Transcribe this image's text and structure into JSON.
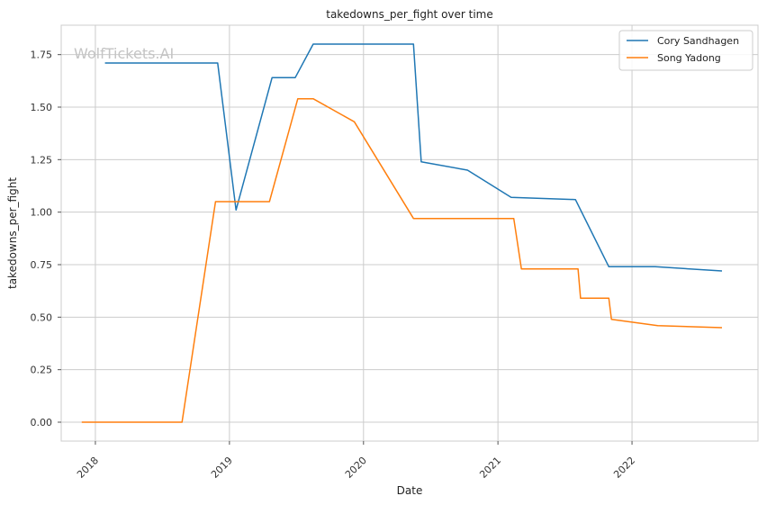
{
  "chart_data": {
    "type": "line",
    "title": "takedowns_per_fight over time",
    "xlabel": "Date",
    "ylabel": "takedowns_per_fight",
    "watermark": "WolfTickets.AI",
    "x_ticks": [
      "2018",
      "2019",
      "2020",
      "2021",
      "2022"
    ],
    "y_ticks": [
      "0.00",
      "0.25",
      "0.50",
      "0.75",
      "1.00",
      "1.25",
      "1.50",
      "1.75"
    ],
    "xlim": [
      "2017-09-30",
      "2022-12-10"
    ],
    "ylim": [
      -0.09,
      1.89
    ],
    "grid": true,
    "legend_position": "top-right",
    "series": [
      {
        "name": "Cory Sandhagen",
        "color": "#1f77b4",
        "points": [
          [
            "2018-01-27",
            1.71
          ],
          [
            "2018-11-30",
            1.71
          ],
          [
            "2019-01-19",
            1.01
          ],
          [
            "2019-04-27",
            1.64
          ],
          [
            "2019-06-29",
            1.64
          ],
          [
            "2019-08-17",
            1.8
          ],
          [
            "2020-05-16",
            1.8
          ],
          [
            "2020-06-06",
            1.24
          ],
          [
            "2020-10-10",
            1.2
          ],
          [
            "2021-02-06",
            1.07
          ],
          [
            "2021-07-31",
            1.06
          ],
          [
            "2021-10-30",
            0.74
          ],
          [
            "2022-03-05",
            0.74
          ],
          [
            "2022-09-03",
            0.72
          ]
        ]
      },
      {
        "name": "Song Yadong",
        "color": "#ff7f0e",
        "points": [
          [
            "2017-11-25",
            0.0
          ],
          [
            "2018-08-25",
            0.0
          ],
          [
            "2018-11-24",
            1.05
          ],
          [
            "2019-04-20",
            1.05
          ],
          [
            "2019-07-06",
            1.54
          ],
          [
            "2019-08-17",
            1.54
          ],
          [
            "2019-12-07",
            1.43
          ],
          [
            "2020-05-16",
            0.97
          ],
          [
            "2021-02-13",
            0.97
          ],
          [
            "2021-03-06",
            0.73
          ],
          [
            "2021-08-07",
            0.73
          ],
          [
            "2021-08-14",
            0.59
          ],
          [
            "2021-10-30",
            0.59
          ],
          [
            "2021-11-06",
            0.49
          ],
          [
            "2022-03-12",
            0.46
          ],
          [
            "2022-09-03",
            0.45
          ]
        ]
      }
    ]
  }
}
